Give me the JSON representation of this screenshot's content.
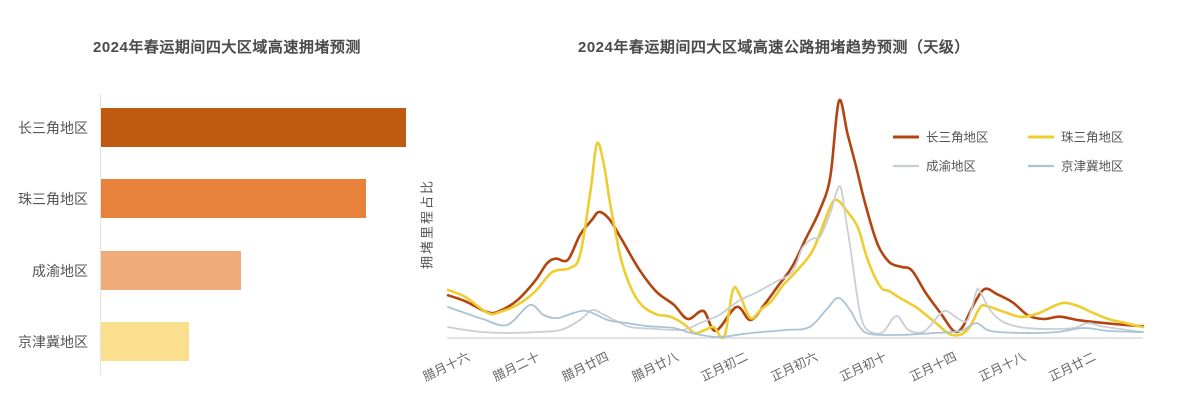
{
  "page": {
    "background": "#ffffff"
  },
  "chart_data": [
    {
      "type": "bar",
      "orientation": "horizontal",
      "title": "2024年春运期间四大区域高速拥堵预测",
      "categories": [
        "长三角地区",
        "珠三角地区",
        "成渝地区",
        "京津冀地区"
      ],
      "values": [
        100,
        87,
        46,
        29
      ],
      "value_note": "relative congestion index estimated from bar lengths; no numeric axis shown in image",
      "bar_colors": [
        "#c05a11",
        "#e8823b",
        "#f0ab7a",
        "#f9df8e"
      ],
      "axis_color": "#e4e4e4",
      "label_color": "#555555",
      "title_color": "#4a4a4a",
      "grid": false
    },
    {
      "type": "line",
      "title": "2024年春运期间四大区域高速公路拥堵趋势预测（天级）",
      "ylabel": "拥堵里程占比",
      "x_tick_labels": [
        "腊月十六",
        "腊月二十",
        "腊月廿四",
        "腊月廿八",
        "正月初二",
        "正月初六",
        "正月初十",
        "正月十四",
        "正月十八",
        "正月廿二"
      ],
      "x_tick_days": [
        1,
        5,
        9,
        13,
        17,
        21,
        25,
        29,
        33,
        37
      ],
      "day_range": [
        0,
        40
      ],
      "ylim": [
        0,
        105
      ],
      "grid": false,
      "legend_position": "top-right, 2 columns x 2 rows",
      "axis_color": "#dcdcdc",
      "tick_label_color": "#666666",
      "series": [
        {
          "name": "长三角地区",
          "color": "#b4440f",
          "line_width": 2.6,
          "points": [
            [
              0,
              18
            ],
            [
              1,
              15.5
            ],
            [
              2.3,
              10.8
            ],
            [
              3,
              11.5
            ],
            [
              4,
              16
            ],
            [
              5,
              24
            ],
            [
              5.7,
              31.5
            ],
            [
              6.2,
              33.5
            ],
            [
              6.9,
              33
            ],
            [
              7.6,
              43.5
            ],
            [
              8.3,
              50
            ],
            [
              8.7,
              53.2
            ],
            [
              9.3,
              50
            ],
            [
              10,
              41.5
            ],
            [
              11,
              29
            ],
            [
              12,
              19.5
            ],
            [
              13,
              14
            ],
            [
              13.8,
              8
            ],
            [
              14.7,
              11.4
            ],
            [
              15.4,
              3
            ],
            [
              16.6,
              13.1
            ],
            [
              17.4,
              7.6
            ],
            [
              18.2,
              14
            ],
            [
              19,
              22
            ],
            [
              19.8,
              30
            ],
            [
              20.6,
              42
            ],
            [
              21.4,
              54
            ],
            [
              22,
              68
            ],
            [
              22.5,
              100
            ],
            [
              23,
              86
            ],
            [
              23.5,
              72
            ],
            [
              24,
              57
            ],
            [
              24.7,
              40
            ],
            [
              25.4,
              32
            ],
            [
              26.1,
              30
            ],
            [
              26.7,
              28.5
            ],
            [
              27.5,
              19
            ],
            [
              28.4,
              10
            ],
            [
              29.1,
              3
            ],
            [
              29.6,
              4.5
            ],
            [
              30.3,
              14.8
            ],
            [
              30.9,
              20.7
            ],
            [
              31.6,
              18.5
            ],
            [
              32.5,
              15
            ],
            [
              33.4,
              9.5
            ],
            [
              34.3,
              8
            ],
            [
              35.2,
              9
            ],
            [
              36.3,
              7.5
            ],
            [
              37.5,
              6.5
            ],
            [
              39,
              5.5
            ],
            [
              40,
              5
            ]
          ]
        },
        {
          "name": "珠三角地区",
          "color": "#eecd30",
          "line_width": 2.6,
          "points": [
            [
              0,
              20.3
            ],
            [
              1,
              17.3
            ],
            [
              2.3,
              10.5
            ],
            [
              3,
              11
            ],
            [
              4,
              14
            ],
            [
              5,
              19.5
            ],
            [
              6,
              27.8
            ],
            [
              7,
              29.5
            ],
            [
              7.6,
              35
            ],
            [
              8.2,
              62
            ],
            [
              8.57,
              82
            ],
            [
              8.95,
              74
            ],
            [
              9.3,
              58
            ],
            [
              9.6,
              46
            ],
            [
              10,
              32
            ],
            [
              10.6,
              20
            ],
            [
              11.2,
              13.5
            ],
            [
              12,
              10
            ],
            [
              12.8,
              9
            ],
            [
              13.6,
              5.8
            ],
            [
              14.2,
              2.1
            ],
            [
              14.8,
              3.4
            ],
            [
              15.3,
              4.6
            ],
            [
              15.9,
              0.6
            ],
            [
              16.4,
              20.3
            ],
            [
              16.8,
              18
            ],
            [
              17.4,
              8.4
            ],
            [
              18,
              12
            ],
            [
              18.6,
              15.5
            ],
            [
              19.3,
              22.4
            ],
            [
              20,
              27.8
            ],
            [
              21,
              37.1
            ],
            [
              22,
              55.3
            ],
            [
              22.4,
              58.2
            ],
            [
              23,
              53.2
            ],
            [
              23.6,
              46.4
            ],
            [
              24.2,
              32
            ],
            [
              24.9,
              21.5
            ],
            [
              25.4,
              19.8
            ],
            [
              26,
              16.9
            ],
            [
              27,
              12.7
            ],
            [
              28,
              6.8
            ],
            [
              29,
              1.3
            ],
            [
              29.9,
              3.4
            ],
            [
              30.6,
              12.7
            ],
            [
              31,
              13.5
            ],
            [
              32,
              11
            ],
            [
              33,
              8.9
            ],
            [
              34,
              10.5
            ],
            [
              35,
              13.9
            ],
            [
              35.6,
              14.8
            ],
            [
              36.4,
              13.1
            ],
            [
              37,
              11
            ],
            [
              38,
              8
            ],
            [
              39,
              6.3
            ],
            [
              40,
              4.6
            ]
          ]
        },
        {
          "name": "成渝地区",
          "color": "#c9ced3",
          "line_width": 1.8,
          "points": [
            [
              0,
              4.6
            ],
            [
              1,
              3.4
            ],
            [
              2,
              2.5
            ],
            [
              3.5,
              2.1
            ],
            [
              5,
              2.5
            ],
            [
              6.5,
              3.4
            ],
            [
              7.6,
              7.6
            ],
            [
              8.3,
              11.8
            ],
            [
              9,
              9.7
            ],
            [
              9.8,
              6.8
            ],
            [
              10.5,
              4.6
            ],
            [
              12,
              3.8
            ],
            [
              13.5,
              3.4
            ],
            [
              14.5,
              6.3
            ],
            [
              15.6,
              9.7
            ],
            [
              16.8,
              16
            ],
            [
              17.7,
              19
            ],
            [
              18.8,
              23.5
            ],
            [
              19.8,
              27.8
            ],
            [
              20.4,
              38
            ],
            [
              21,
              42
            ],
            [
              21.4,
              42.5
            ],
            [
              22,
              52.7
            ],
            [
              22.55,
              64.1
            ],
            [
              22.9,
              50
            ],
            [
              23.2,
              36
            ],
            [
              23.5,
              20
            ],
            [
              23.8,
              8
            ],
            [
              24.2,
              3
            ],
            [
              25,
              2.3
            ],
            [
              25.8,
              9.3
            ],
            [
              26.5,
              3.4
            ],
            [
              27.4,
              2.8
            ],
            [
              28.3,
              10
            ],
            [
              28.7,
              11.4
            ],
            [
              29.3,
              8.5
            ],
            [
              29.9,
              7.5
            ],
            [
              30.4,
              19.4
            ],
            [
              30.6,
              19.8
            ],
            [
              31.2,
              11.8
            ],
            [
              31.9,
              7
            ],
            [
              33,
              4.5
            ],
            [
              34.5,
              3.8
            ],
            [
              36,
              4.2
            ],
            [
              36.8,
              6.3
            ],
            [
              37.6,
              5
            ],
            [
              39,
              3.5
            ],
            [
              40,
              2.5
            ]
          ]
        },
        {
          "name": "京津冀地区",
          "color": "#aac3d6",
          "line_width": 1.8,
          "points": [
            [
              0,
              13.1
            ],
            [
              1,
              10.5
            ],
            [
              2,
              8
            ],
            [
              3.4,
              5.5
            ],
            [
              4.7,
              13.9
            ],
            [
              5.5,
              9.7
            ],
            [
              6.3,
              8.4
            ],
            [
              7.2,
              10.5
            ],
            [
              8,
              11.4
            ],
            [
              9.2,
              7.6
            ],
            [
              10.3,
              6.3
            ],
            [
              11.5,
              5
            ],
            [
              13,
              4.2
            ],
            [
              14,
              2.1
            ],
            [
              15.5,
              0.4
            ],
            [
              17,
              1.7
            ],
            [
              18,
              2.5
            ],
            [
              19.5,
              3.4
            ],
            [
              20.8,
              4.6
            ],
            [
              21.8,
              12.2
            ],
            [
              22.45,
              16.9
            ],
            [
              23.1,
              12.2
            ],
            [
              23.7,
              4.6
            ],
            [
              24.3,
              1.7
            ],
            [
              26,
              1.3
            ],
            [
              28,
              2.1
            ],
            [
              29.5,
              3
            ],
            [
              30.4,
              6.3
            ],
            [
              31.2,
              3
            ],
            [
              33,
              2.1
            ],
            [
              35,
              2.5
            ],
            [
              36.6,
              4.2
            ],
            [
              38,
              3
            ],
            [
              40,
              2.5
            ]
          ]
        }
      ]
    }
  ]
}
